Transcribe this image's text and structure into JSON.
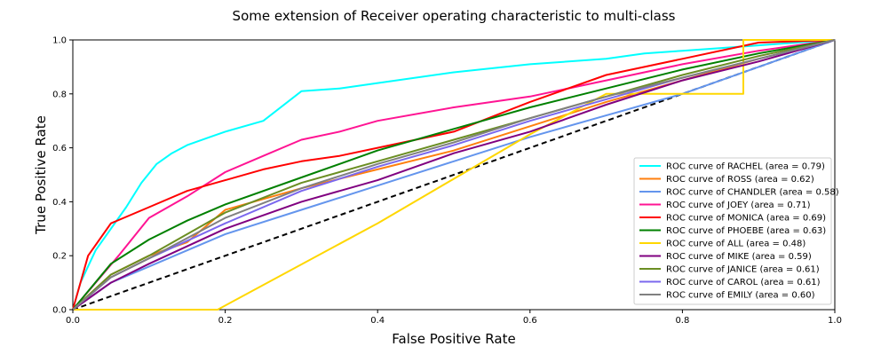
{
  "chart_data": {
    "type": "line",
    "title": "Some extension of Receiver operating characteristic to multi-class",
    "xlabel": "False Positive Rate",
    "ylabel": "True Positive Rate",
    "xlim": [
      0.0,
      1.0
    ],
    "ylim": [
      0.0,
      1.0
    ],
    "xticks": [
      "0.0",
      "0.2",
      "0.4",
      "0.6",
      "0.8",
      "1.0"
    ],
    "yticks": [
      "0.0",
      "0.2",
      "0.4",
      "0.6",
      "0.8",
      "1.0"
    ],
    "grid": false,
    "legend_position": "lower right",
    "diagonal": {
      "x": [
        0,
        1
      ],
      "y": [
        0,
        1
      ],
      "color": "#000000",
      "style": "dashed"
    },
    "series": [
      {
        "name": "ROC curve of RACHEL (area = 0.79)",
        "color": "#00ffff",
        "x": [
          0,
          0.01,
          0.03,
          0.05,
          0.07,
          0.09,
          0.11,
          0.13,
          0.15,
          0.18,
          0.2,
          0.25,
          0.3,
          0.35,
          0.4,
          0.5,
          0.6,
          0.7,
          0.75,
          0.8,
          0.9,
          1.0
        ],
        "y": [
          0,
          0.1,
          0.22,
          0.3,
          0.38,
          0.47,
          0.54,
          0.58,
          0.61,
          0.64,
          0.66,
          0.7,
          0.81,
          0.82,
          0.84,
          0.88,
          0.91,
          0.93,
          0.95,
          0.96,
          0.98,
          1.0
        ]
      },
      {
        "name": "ROC curve of ROSS (area = 0.62)",
        "color": "#ff7f0e",
        "x": [
          0,
          0.05,
          0.1,
          0.15,
          0.2,
          0.3,
          0.4,
          0.5,
          0.6,
          0.7,
          0.8,
          0.9,
          1.0
        ],
        "y": [
          0,
          0.13,
          0.2,
          0.25,
          0.37,
          0.45,
          0.52,
          0.59,
          0.68,
          0.77,
          0.85,
          0.93,
          1.0
        ]
      },
      {
        "name": "ROC curve of CHANDLER (area = 0.58)",
        "color": "#6495ed",
        "x": [
          0,
          0.05,
          0.1,
          0.2,
          0.3,
          0.4,
          0.5,
          0.6,
          0.7,
          0.8,
          0.9,
          1.0
        ],
        "y": [
          0,
          0.1,
          0.16,
          0.28,
          0.37,
          0.46,
          0.55,
          0.64,
          0.72,
          0.8,
          0.9,
          1.0
        ]
      },
      {
        "name": "ROC curve of JOEY (area = 0.71)",
        "color": "#ff1493",
        "x": [
          0,
          0.03,
          0.06,
          0.1,
          0.15,
          0.2,
          0.25,
          0.3,
          0.35,
          0.4,
          0.5,
          0.6,
          0.7,
          0.8,
          0.9,
          1.0
        ],
        "y": [
          0,
          0.1,
          0.2,
          0.34,
          0.42,
          0.51,
          0.57,
          0.63,
          0.66,
          0.7,
          0.75,
          0.79,
          0.85,
          0.91,
          0.96,
          1.0
        ]
      },
      {
        "name": "ROC curve of MONICA (area = 0.69)",
        "color": "#ff0000",
        "x": [
          0,
          0.02,
          0.05,
          0.1,
          0.15,
          0.2,
          0.25,
          0.3,
          0.35,
          0.4,
          0.5,
          0.6,
          0.7,
          0.8,
          0.9,
          1.0
        ],
        "y": [
          0,
          0.2,
          0.32,
          0.38,
          0.44,
          0.48,
          0.52,
          0.55,
          0.57,
          0.6,
          0.66,
          0.77,
          0.87,
          0.93,
          0.99,
          1.0
        ]
      },
      {
        "name": "ROC curve of PHOEBE (area = 0.63)",
        "color": "#008000",
        "x": [
          0,
          0.05,
          0.1,
          0.15,
          0.2,
          0.3,
          0.4,
          0.5,
          0.6,
          0.7,
          0.8,
          0.9,
          1.0
        ],
        "y": [
          0,
          0.17,
          0.26,
          0.33,
          0.39,
          0.49,
          0.59,
          0.67,
          0.75,
          0.82,
          0.89,
          0.95,
          1.0
        ]
      },
      {
        "name": "ROC curve of ALL (area = 0.48)",
        "color": "#ffd700",
        "x": [
          0,
          0.19,
          0.4,
          0.6,
          0.7,
          0.88,
          0.88,
          1.0
        ],
        "y": [
          0,
          0,
          0.32,
          0.65,
          0.8,
          0.8,
          1.0,
          1.0
        ]
      },
      {
        "name": "ROC curve of MIKE (area = 0.59)",
        "color": "#800080",
        "x": [
          0,
          0.05,
          0.1,
          0.2,
          0.3,
          0.4,
          0.5,
          0.6,
          0.7,
          0.8,
          0.9,
          1.0
        ],
        "y": [
          0,
          0.1,
          0.17,
          0.3,
          0.4,
          0.48,
          0.58,
          0.66,
          0.76,
          0.85,
          0.92,
          1.0
        ]
      },
      {
        "name": "ROC curve of JANICE (area = 0.61)",
        "color": "#6b8e23",
        "x": [
          0,
          0.05,
          0.1,
          0.2,
          0.3,
          0.4,
          0.5,
          0.6,
          0.7,
          0.8,
          0.9,
          1.0
        ],
        "y": [
          0,
          0.13,
          0.2,
          0.36,
          0.47,
          0.55,
          0.63,
          0.71,
          0.79,
          0.87,
          0.94,
          1.0
        ]
      },
      {
        "name": "ROC curve of CAROL (area = 0.61)",
        "color": "#7b68ee",
        "x": [
          0,
          0.05,
          0.1,
          0.2,
          0.3,
          0.4,
          0.5,
          0.6,
          0.7,
          0.8,
          0.9,
          1.0
        ],
        "y": [
          0,
          0.12,
          0.19,
          0.32,
          0.44,
          0.53,
          0.61,
          0.7,
          0.78,
          0.86,
          0.93,
          1.0
        ]
      },
      {
        "name": "ROC curve of EMILY (area = 0.60)",
        "color": "#808080",
        "x": [
          0,
          0.05,
          0.1,
          0.2,
          0.3,
          0.4,
          0.5,
          0.6,
          0.7,
          0.8,
          0.9,
          1.0
        ],
        "y": [
          0,
          0.12,
          0.19,
          0.34,
          0.45,
          0.54,
          0.62,
          0.71,
          0.79,
          0.86,
          0.93,
          1.0
        ]
      }
    ]
  }
}
